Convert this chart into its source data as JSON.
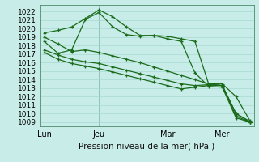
{
  "xlabel": "Pression niveau de la mer( hPa )",
  "background_color": "#c8ece8",
  "grid_color": "#a8d8d0",
  "line_color": "#1a6b1a",
  "vline_color": "#4a8a6a",
  "ylim": [
    1008.5,
    1022.8
  ],
  "yticks": [
    1009,
    1010,
    1011,
    1012,
    1013,
    1014,
    1015,
    1016,
    1017,
    1018,
    1019,
    1020,
    1021,
    1022
  ],
  "xtick_labels": [
    "Lun",
    "Jeu",
    "Mar",
    "Mer"
  ],
  "xtick_positions": [
    0,
    4,
    9,
    13
  ],
  "num_points": 16,
  "lines": [
    [
      1019.5,
      1019.8,
      1020.2,
      1021.2,
      1022.2,
      1021.4,
      1020.2,
      1019.2,
      1019.2,
      1019.1,
      1018.8,
      1018.5,
      1013.5,
      1013.3,
      1010.0,
      1009.0
    ],
    [
      1018.5,
      1017.1,
      1017.5,
      1021.1,
      1021.9,
      1020.2,
      1019.3,
      1019.1,
      1019.2,
      1018.8,
      1018.5,
      1014.8,
      1013.2,
      1013.1,
      1009.5,
      1009.0
    ],
    [
      1019.0,
      1018.2,
      1017.3,
      1017.5,
      1017.2,
      1016.8,
      1016.4,
      1016.0,
      1015.5,
      1015.0,
      1014.5,
      1014.0,
      1013.5,
      1013.5,
      1012.0,
      1009.2
    ],
    [
      1017.5,
      1016.9,
      1016.4,
      1016.1,
      1015.9,
      1015.5,
      1015.1,
      1014.7,
      1014.3,
      1013.9,
      1013.5,
      1013.3,
      1013.4,
      1013.3,
      1010.0,
      1009.1
    ],
    [
      1017.2,
      1016.4,
      1015.9,
      1015.6,
      1015.3,
      1014.9,
      1014.5,
      1014.1,
      1013.7,
      1013.3,
      1012.9,
      1013.1,
      1013.3,
      1013.3,
      1009.7,
      1009.0
    ]
  ]
}
